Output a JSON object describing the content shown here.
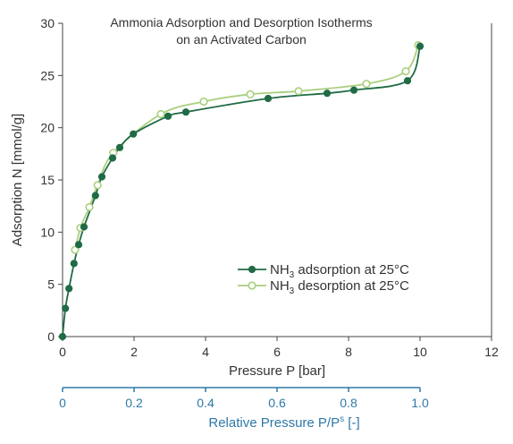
{
  "chart_data": {
    "type": "line",
    "title_line1": "Ammonia Adsorption and Desorption Isotherms",
    "title_line2": "on an Activated Carbon",
    "xlabel": "Pressure P [bar]",
    "ylabel": "Adsorption N [mmol/g]",
    "xlim": [
      0,
      12
    ],
    "ylim": [
      0,
      30
    ],
    "xticks": [
      "0",
      "2",
      "4",
      "6",
      "8",
      "10",
      "12"
    ],
    "yticks": [
      "0",
      "5",
      "10",
      "15",
      "20",
      "25",
      "30"
    ],
    "grid": false,
    "legend_position": "center-right",
    "secondary_axis": {
      "label_prefix": "Relative Pressure P/P",
      "label_sup": "s",
      "label_suffix": " [-]",
      "ticks": [
        "0",
        "0.2",
        "0.4",
        "0.6",
        "0.8",
        "1.0"
      ],
      "range": [
        0,
        1.0
      ],
      "color": "#2f78a8"
    },
    "series": [
      {
        "legend_prefix": "NH",
        "legend_sub": "3",
        "legend_suffix": " adsorption at 25°C",
        "color": "#1f6b45",
        "marker": "filled-circle",
        "points": [
          [
            0,
            0
          ],
          [
            0.08,
            2.7
          ],
          [
            0.18,
            4.6
          ],
          [
            0.32,
            7.0
          ],
          [
            0.45,
            8.8
          ],
          [
            0.6,
            10.5
          ],
          [
            0.92,
            13.5
          ],
          [
            1.1,
            15.3
          ],
          [
            1.4,
            17.1
          ],
          [
            1.6,
            18.1
          ],
          [
            1.98,
            19.4
          ],
          [
            2.95,
            21.1
          ],
          [
            3.45,
            21.5
          ],
          [
            5.75,
            22.8
          ],
          [
            7.4,
            23.3
          ],
          [
            8.15,
            23.6
          ],
          [
            9.65,
            24.5
          ],
          [
            10.0,
            27.8
          ]
        ]
      },
      {
        "legend_prefix": "NH",
        "legend_sub": "3",
        "legend_suffix": " desorption at 25°C",
        "color": "#a9cf7d",
        "marker": "open-circle",
        "points": [
          [
            0.35,
            8.3
          ],
          [
            0.5,
            10.4
          ],
          [
            0.75,
            12.4
          ],
          [
            0.98,
            14.5
          ],
          [
            1.42,
            17.6
          ],
          [
            2.75,
            21.3
          ],
          [
            3.95,
            22.5
          ],
          [
            5.25,
            23.2
          ],
          [
            6.6,
            23.5
          ],
          [
            8.5,
            24.2
          ],
          [
            9.6,
            25.4
          ],
          [
            9.95,
            27.9
          ]
        ]
      }
    ]
  }
}
